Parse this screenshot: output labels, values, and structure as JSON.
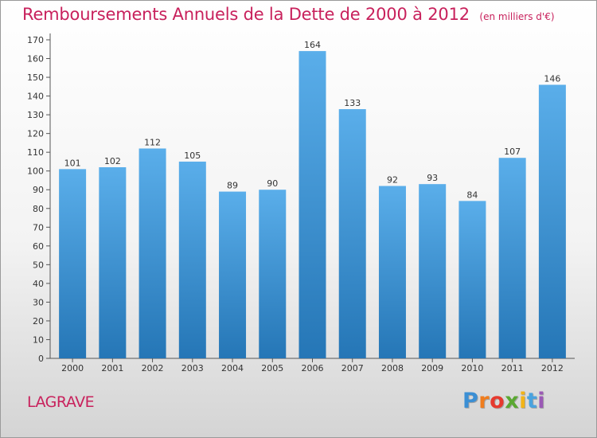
{
  "chart_data": {
    "type": "bar",
    "title": "Remboursements Annuels de la Dette de 2000 à 2012",
    "subtitle": "(en milliers d'€)",
    "categories": [
      "2000",
      "2001",
      "2002",
      "2003",
      "2004",
      "2005",
      "2006",
      "2007",
      "2008",
      "2009",
      "2010",
      "2011",
      "2012"
    ],
    "values": [
      101,
      102,
      112,
      105,
      89,
      90,
      164,
      133,
      92,
      93,
      84,
      107,
      146
    ],
    "xlabel": "",
    "ylabel": "",
    "ylim": [
      0,
      170
    ],
    "yticks": [
      0,
      10,
      20,
      30,
      40,
      50,
      60,
      70,
      80,
      90,
      100,
      110,
      120,
      130,
      140,
      150,
      160,
      170
    ],
    "grid": false,
    "bar_color_top": "#5aaeea",
    "bar_color_bottom": "#2576b6"
  },
  "footer": {
    "commune": "LAGRAVE",
    "logo_letters": [
      "P",
      "r",
      "o",
      "x",
      "i",
      "t",
      "i"
    ],
    "logo_colors": [
      "#3b8fd4",
      "#f07d1e",
      "#e63a2f",
      "#5aa832",
      "#f2b418",
      "#4aa3df",
      "#9b59b6"
    ]
  }
}
